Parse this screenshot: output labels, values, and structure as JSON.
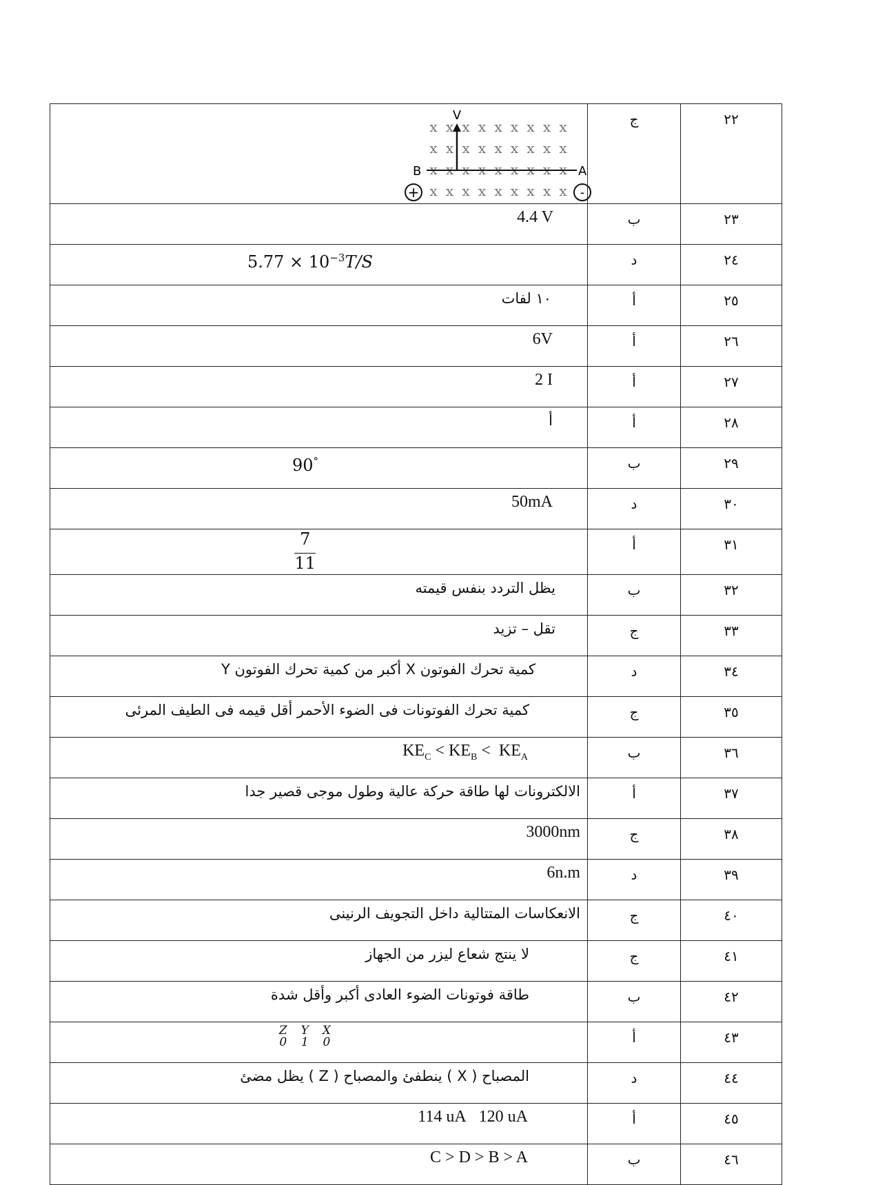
{
  "rows": [
    {
      "num": "٢٢",
      "letter": "ج",
      "diagram": {
        "labels": {
          "v": "V",
          "b": "B",
          "a": "A",
          "plus": "+",
          "minus": "-"
        },
        "symbol": "x"
      }
    },
    {
      "num": "٢٣",
      "letter": "ب",
      "answer": "4.4 V"
    },
    {
      "num": "٢٤",
      "letter": "د",
      "answer_base": "5.77 × 10",
      "answer_exp": "−3",
      "answer_unit": "T/S"
    },
    {
      "num": "٢٥",
      "letter": "أ",
      "answer": "١٠ لفات"
    },
    {
      "num": "٢٦",
      "letter": "أ",
      "answer": "6V"
    },
    {
      "num": "٢٧",
      "letter": "أ",
      "answer": "2 I"
    },
    {
      "num": "٢٨",
      "letter": "أ",
      "answer": "أ"
    },
    {
      "num": "٢٩",
      "letter": "ب",
      "answer_base": "90",
      "answer_exp": "°"
    },
    {
      "num": "٣٠",
      "letter": "د",
      "answer": "50mA"
    },
    {
      "num": "٣١",
      "letter": "أ",
      "numerator": "7",
      "denominator": "11"
    },
    {
      "num": "٣٢",
      "letter": "ب",
      "answer": "يظل التردد بنفس قيمته"
    },
    {
      "num": "٣٣",
      "letter": "ج",
      "answer": "تقل – تزيد"
    },
    {
      "num": "٣٤",
      "letter": "د",
      "answer": "كمية تحرك  الفوتون X أكبر من كمية تحرك الفوتون Y"
    },
    {
      "num": "٣٥",
      "letter": "ج",
      "answer": "كمية تحرك الفوتونات فى الضوء الأحمر أقل قيمه فى الطيف المرئى"
    },
    {
      "num": "٣٦",
      "letter": "ب",
      "ke": "KE",
      "sub_c": "C",
      "sub_b": "B",
      "sub_a": "A",
      "lt": "<"
    },
    {
      "num": "٣٧",
      "letter": "أ",
      "answer": "الالكترونات لها طاقة حركة عالية وطول موجى قصير جدا"
    },
    {
      "num": "٣٨",
      "letter": "ج",
      "answer": "3000nm"
    },
    {
      "num": "٣٩",
      "letter": "د",
      "answer": "6n.m"
    },
    {
      "num": "٤٠",
      "letter": "ج",
      "answer": "الانعكاسات المتتالية داخل التجويف الرنينى"
    },
    {
      "num": "٤١",
      "letter": "ج",
      "answer": "لا ينتج شعاع ليزر من الجهاز"
    },
    {
      "num": "٤٢",
      "letter": "ب",
      "answer": "طاقة فوتونات الضوء العادى أكبر وأقل شدة"
    },
    {
      "num": "٤٣",
      "letter": "أ",
      "truth": [
        {
          "h": "Z",
          "v": "0"
        },
        {
          "h": "Y",
          "v": "1"
        },
        {
          "h": "X",
          "v": "0"
        }
      ]
    },
    {
      "num": "٤٤",
      "letter": "د",
      "answer": "المصباح  ( X ) ينطفئ والمصباح  ( Z )  يظل مضئ"
    },
    {
      "num": "٤٥",
      "letter": "أ",
      "answer_a": "114 uA",
      "answer_b": "120 uA"
    },
    {
      "num": "٤٦",
      "letter": "ب",
      "answer": "C > D > B > A"
    }
  ]
}
